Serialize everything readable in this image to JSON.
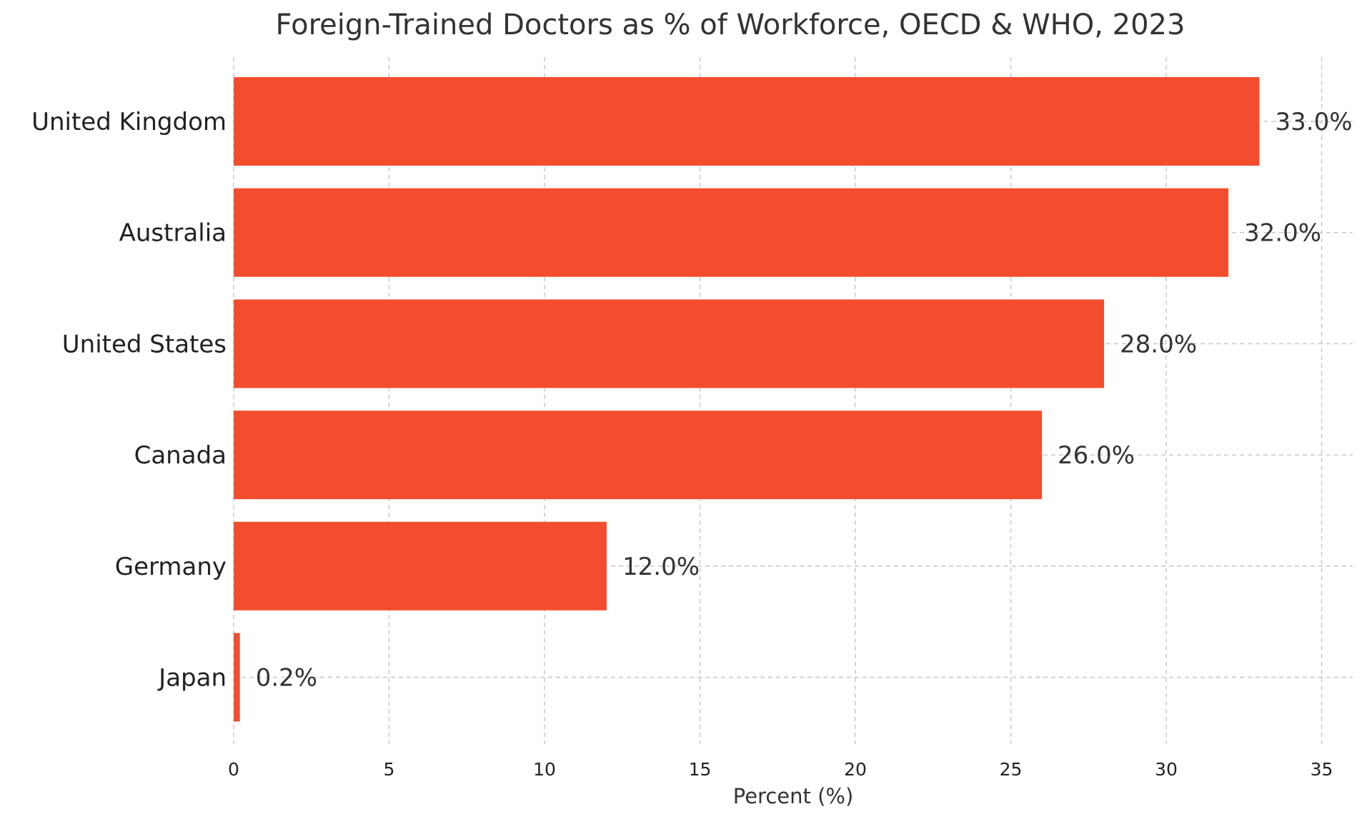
{
  "chart_data": {
    "type": "bar",
    "orientation": "horizontal",
    "title": "Foreign-Trained Doctors as % of Workforce, OECD & WHO, 2023",
    "xlabel": "Percent (%)",
    "ylabel": "",
    "categories": [
      "United Kingdom",
      "Australia",
      "United States",
      "Canada",
      "Germany",
      "Japan"
    ],
    "values": [
      33.0,
      32.0,
      28.0,
      26.0,
      12.0,
      0.2
    ],
    "data_labels": [
      "33.0%",
      "32.0%",
      "28.0%",
      "26.0%",
      "12.0%",
      "0.2%"
    ],
    "xlim": [
      0,
      36
    ],
    "xticks": [
      0,
      5,
      10,
      15,
      20,
      25,
      30,
      35
    ],
    "xtick_labels": [
      "0",
      "5",
      "10",
      "15",
      "20",
      "25",
      "30",
      "35"
    ],
    "grid": true,
    "bar_color": "#f24d2f"
  }
}
